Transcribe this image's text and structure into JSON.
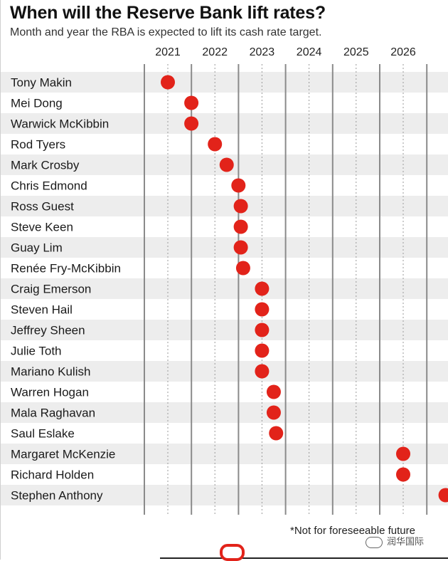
{
  "header": {
    "title": "When will the Reserve Bank lift rates?",
    "subtitle": "Month and year the RBA is expected to lift its cash rate target."
  },
  "footnote": "*Not for foreseeable future",
  "watermark": "润华国际",
  "colors": {
    "dot": "#e2231a",
    "band": "#ededed",
    "axis_line": "#8a8a8a",
    "grid_dotted": "#9a9a9a"
  },
  "chart_data": {
    "type": "scatter",
    "title": "When will the Reserve Bank lift rates?",
    "subtitle": "Month and year the RBA is expected to lift its cash rate target.",
    "x_ticks": [
      "2021",
      "2022",
      "2023",
      "2024",
      "2025",
      "2026"
    ],
    "xlim": [
      2020.5,
      2026.9
    ],
    "grid": true,
    "economists": [
      {
        "name": "Tony Makin",
        "year": 2021.0
      },
      {
        "name": "Mei Dong",
        "year": 2021.5
      },
      {
        "name": "Warwick McKibbin",
        "year": 2021.5
      },
      {
        "name": "Rod Tyers",
        "year": 2022.0
      },
      {
        "name": "Mark Crosby",
        "year": 2022.25
      },
      {
        "name": "Chris Edmond",
        "year": 2022.5
      },
      {
        "name": "Ross Guest",
        "year": 2022.55
      },
      {
        "name": "Steve Keen",
        "year": 2022.55
      },
      {
        "name": "Guay Lim",
        "year": 2022.55
      },
      {
        "name": "Renée Fry-McKibbin",
        "year": 2022.6
      },
      {
        "name": "Craig Emerson",
        "year": 2023.0
      },
      {
        "name": "Steven Hail",
        "year": 2023.0
      },
      {
        "name": "Jeffrey Sheen",
        "year": 2023.0
      },
      {
        "name": "Julie Toth",
        "year": 2023.0
      },
      {
        "name": "Mariano Kulish",
        "year": 2023.0
      },
      {
        "name": "Warren Hogan",
        "year": 2023.25
      },
      {
        "name": "Mala Raghavan",
        "year": 2023.25
      },
      {
        "name": "Saul Eslake",
        "year": 2023.3
      },
      {
        "name": "Margaret McKenzie",
        "year": 2026.0
      },
      {
        "name": "Richard Holden",
        "year": 2026.0
      },
      {
        "name": "Stephen Anthony",
        "year": 2026.9
      }
    ]
  }
}
